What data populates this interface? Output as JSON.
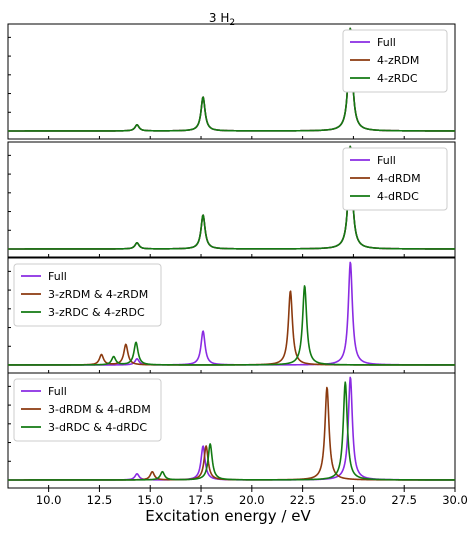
{
  "figure": {
    "title_main": "3 H",
    "title_sub": "2",
    "xlabel": "Excitation energy / eV"
  },
  "chart_data": [
    {
      "type": "line",
      "panel": 1,
      "xlim": [
        8.0,
        30.0
      ],
      "x_ticks": [
        "10.0",
        "12.5",
        "15.0",
        "17.5",
        "20.0",
        "22.5",
        "25.0",
        "27.5",
        "30.0"
      ],
      "x_tick_values": [
        10.0,
        12.5,
        15.0,
        17.5,
        20.0,
        22.5,
        25.0,
        27.5,
        30.0
      ],
      "legend_position": "top-right",
      "series": [
        {
          "name": "Full",
          "color": "#8a2be2",
          "peaks": [
            [
              14.35,
              0.06
            ],
            [
              17.6,
              0.33
            ],
            [
              24.85,
              1.0
            ]
          ]
        },
        {
          "name": "4-zRDM",
          "color": "#8b3a0f",
          "peaks": [
            [
              14.35,
              0.06
            ],
            [
              17.6,
              0.33
            ],
            [
              24.85,
              1.0
            ]
          ]
        },
        {
          "name": "4-zRDC",
          "color": "#137a13",
          "peaks": [
            [
              14.35,
              0.06
            ],
            [
              17.6,
              0.33
            ],
            [
              24.85,
              1.0
            ]
          ]
        }
      ]
    },
    {
      "type": "line",
      "panel": 2,
      "xlim": [
        8.0,
        30.0
      ],
      "legend_position": "top-right",
      "series": [
        {
          "name": "Full",
          "color": "#8a2be2",
          "peaks": [
            [
              14.35,
              0.06
            ],
            [
              17.6,
              0.33
            ],
            [
              24.85,
              1.0
            ]
          ]
        },
        {
          "name": "4-dRDM",
          "color": "#8b3a0f",
          "peaks": [
            [
              14.35,
              0.06
            ],
            [
              17.6,
              0.33
            ],
            [
              24.85,
              1.0
            ]
          ]
        },
        {
          "name": "4-dRDC",
          "color": "#137a13",
          "peaks": [
            [
              14.35,
              0.06
            ],
            [
              17.6,
              0.33
            ],
            [
              24.85,
              1.0
            ]
          ]
        }
      ]
    },
    {
      "type": "line",
      "panel": 3,
      "xlim": [
        8.0,
        30.0
      ],
      "legend_position": "top-left",
      "series": [
        {
          "name": "Full",
          "color": "#8a2be2",
          "peaks": [
            [
              14.35,
              0.06
            ],
            [
              17.6,
              0.33
            ],
            [
              24.85,
              1.0
            ]
          ]
        },
        {
          "name": "3-zRDM & 4-zRDM",
          "color": "#8b3a0f",
          "peaks": [
            [
              12.6,
              0.1
            ],
            [
              13.8,
              0.2
            ],
            [
              21.9,
              0.72
            ]
          ]
        },
        {
          "name": "3-zRDC & 4-zRDC",
          "color": "#137a13",
          "peaks": [
            [
              13.2,
              0.08
            ],
            [
              14.3,
              0.22
            ],
            [
              22.6,
              0.77
            ]
          ]
        }
      ]
    },
    {
      "type": "line",
      "panel": 4,
      "xlim": [
        8.0,
        30.0
      ],
      "legend_position": "top-left",
      "series": [
        {
          "name": "Full",
          "color": "#8a2be2",
          "peaks": [
            [
              14.35,
              0.06
            ],
            [
              17.6,
              0.33
            ],
            [
              24.85,
              1.0
            ]
          ]
        },
        {
          "name": "3-dRDM & 4-dRDM",
          "color": "#8b3a0f",
          "peaks": [
            [
              15.1,
              0.08
            ],
            [
              17.75,
              0.33
            ],
            [
              23.7,
              0.9
            ]
          ]
        },
        {
          "name": "3-dRDC & 4-dRDC",
          "color": "#137a13",
          "peaks": [
            [
              15.6,
              0.08
            ],
            [
              17.95,
              0.35
            ],
            [
              24.6,
              0.95
            ]
          ]
        }
      ]
    }
  ]
}
